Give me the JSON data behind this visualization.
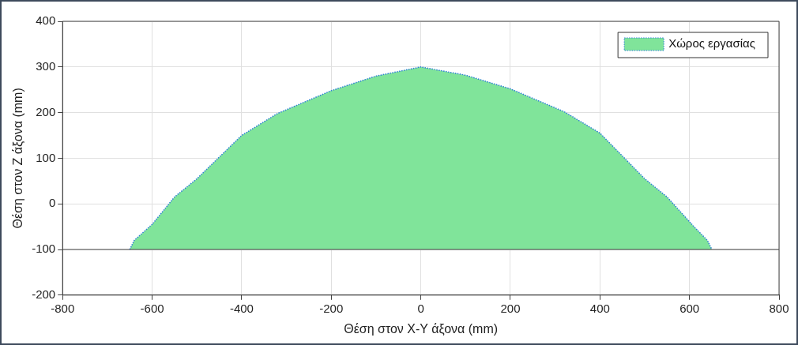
{
  "chart_data": {
    "type": "area",
    "xlabel": "Θέση στον X-Y άξονα (mm)",
    "ylabel": "Θέση στον Z άξονα (mm)",
    "x": [
      -650,
      -640,
      -600,
      -550,
      -500,
      -400,
      -320,
      -200,
      -100,
      0,
      100,
      200,
      320,
      400,
      500,
      550,
      610,
      640,
      650
    ],
    "series": [
      {
        "name": "Χώρος εργασίας",
        "color": "#80e49a",
        "values": [
          -100,
          -80,
          -45,
          15,
          55,
          150,
          198,
          248,
          280,
          300,
          282,
          252,
          202,
          155,
          55,
          15,
          -50,
          -80,
          -100
        ]
      }
    ],
    "xlim": [
      -800,
      800
    ],
    "xticks": [
      -800,
      -600,
      -400,
      -200,
      0,
      200,
      400,
      600,
      800
    ],
    "ylim": [
      -200,
      400
    ],
    "yticks": [
      -200,
      -100,
      0,
      100,
      200,
      300,
      400
    ],
    "ref_lines": [
      {
        "axis": "y",
        "value": -100,
        "color": "#444444"
      }
    ],
    "grid": true,
    "legend": "top right",
    "line_style": "dotted"
  }
}
